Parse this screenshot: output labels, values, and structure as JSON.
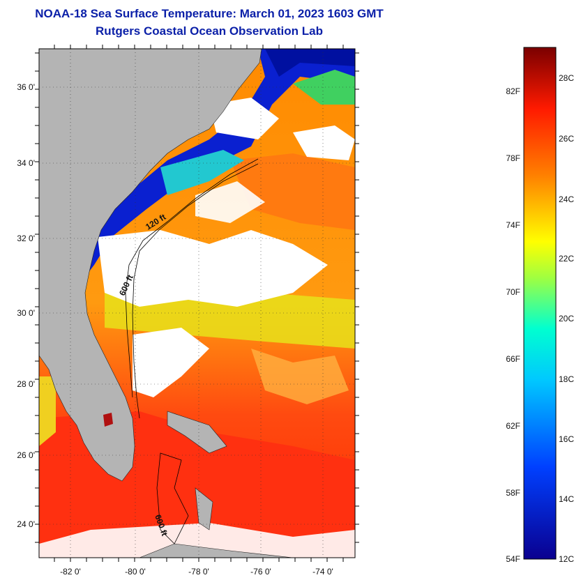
{
  "title": "NOAA-18 Sea Surface Temperature:  March 01, 2023 1603 GMT",
  "subtitle": "Rutgers Coastal Ocean Observation Lab",
  "map": {
    "lat_ticks": [
      "36 0'",
      "34 0'",
      "32 0'",
      "30 0'",
      "28 0'",
      "26 0'",
      "24 0'"
    ],
    "lon_ticks": [
      "-82 0'",
      "-80 0'",
      "-78 0'",
      "-76 0'",
      "-74 0'"
    ],
    "isobaths": [
      "120 ft",
      "600 ft",
      "600 ft"
    ]
  },
  "colorbar": {
    "fahrenheit": [
      "82F",
      "78F",
      "74F",
      "70F",
      "66F",
      "62F",
      "58F",
      "54F"
    ],
    "celsius": [
      "28C",
      "26C",
      "24C",
      "22C",
      "20C",
      "18C",
      "16C",
      "14C",
      "12C"
    ],
    "colors": {
      "min": "#0a008f",
      "blue": "#0040ff",
      "cyan": "#00ffff",
      "yellow": "#ffff00",
      "orange": "#ff8000",
      "red": "#ff1a00",
      "max": "#7a0000"
    }
  },
  "colors": {
    "land": "#b4b4b4",
    "cloud": "#ffffff",
    "title": "#0a1fa8"
  }
}
